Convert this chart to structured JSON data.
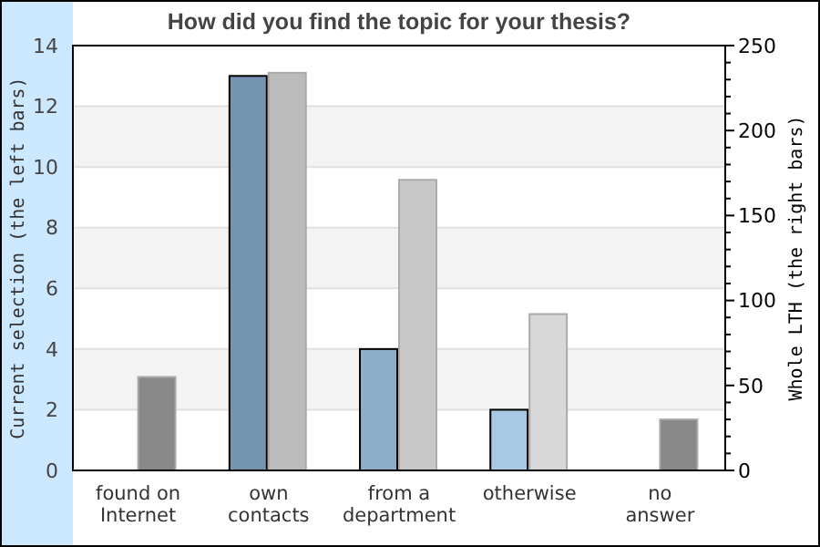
{
  "chart_data": {
    "type": "bar",
    "title": "How did you find the topic for your thesis?",
    "categories": [
      "found on Internet",
      "own contacts",
      "from a department",
      "otherwise",
      "no answer"
    ],
    "ylabel": "Current selection (the left bars)",
    "y2label": "Whole LTH (the right bars)",
    "ylim": [
      0,
      14
    ],
    "yticks": [
      0,
      2,
      4,
      6,
      8,
      10,
      12,
      14
    ],
    "y2lim": [
      0,
      250
    ],
    "y2ticks": [
      0,
      {
        "value": 10,
        "label": null
      },
      {
        "value": 20,
        "label": null
      },
      {
        "value": 30,
        "label": null
      },
      {
        "value": 40,
        "label": null
      },
      50,
      {
        "value": 60,
        "label": null
      },
      {
        "value": 70,
        "label": null
      },
      {
        "value": 80,
        "label": null
      },
      {
        "value": 90,
        "label": null
      },
      100,
      {
        "value": 110,
        "label": null
      },
      {
        "value": 120,
        "label": null
      },
      {
        "value": 130,
        "label": null
      },
      {
        "value": 140,
        "label": null
      },
      150,
      {
        "value": 160,
        "label": null
      },
      {
        "value": 170,
        "label": null
      },
      {
        "value": 180,
        "label": null
      },
      {
        "value": 190,
        "label": null
      },
      200,
      {
        "value": 210,
        "label": null
      },
      {
        "value": 220,
        "label": null
      },
      {
        "value": 230,
        "label": null
      },
      {
        "value": 240,
        "label": null
      },
      250
    ],
    "grid": "y",
    "series": [
      {
        "axis": "y",
        "colors": [
          "#7494b0",
          "#7494b0",
          "#8eaec8",
          "#a8c8e4",
          "#a8c8e4"
        ],
        "values": [
          0,
          13,
          4,
          2,
          0
        ]
      },
      {
        "axis": "y2",
        "colors": [
          "#888888",
          "#bbbbbb",
          "#c8c8c8",
          "#d8d8d8",
          "#888888"
        ],
        "values": [
          55,
          234,
          171,
          92,
          30
        ]
      }
    ]
  }
}
